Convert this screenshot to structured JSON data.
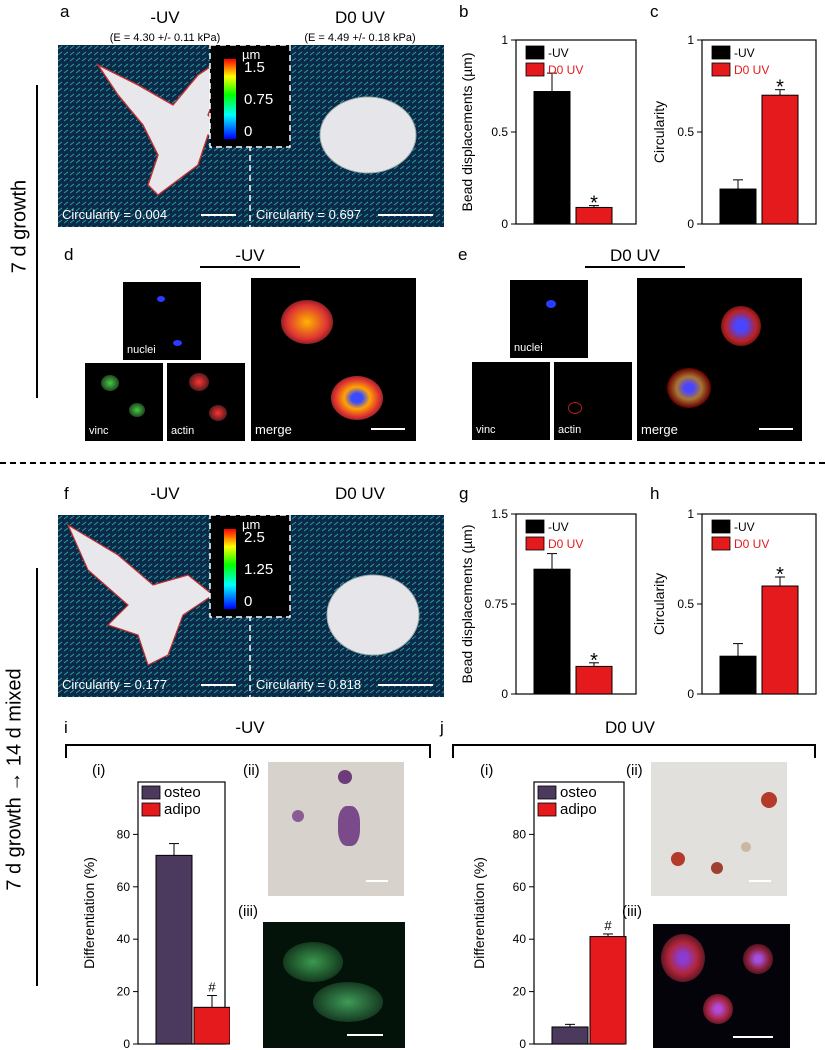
{
  "side_labels": {
    "top": "7 d growth",
    "bottom": "7 d growth → 14 d mixed"
  },
  "panel_letters": [
    "a",
    "b",
    "c",
    "d",
    "e",
    "f",
    "g",
    "h",
    "i",
    "j"
  ],
  "panel_a": {
    "left_title": "-UV",
    "left_modulus": "(E = 4.30 +/- 0.11 kPa)",
    "right_title": "D0 UV",
    "right_modulus": "(E = 4.49 +/- 0.18 kPa)",
    "scale_unit": "µm",
    "scale_ticks": [
      "1.5",
      "0.75",
      "0"
    ],
    "left_circularity": "Circularity = 0.004",
    "right_circularity": "Circularity = 0.697"
  },
  "panel_f": {
    "left_title": "-UV",
    "right_title": "D0 UV",
    "scale_unit": "µm",
    "scale_ticks": [
      "2.5",
      "1.25",
      "0"
    ],
    "left_circularity": "Circularity = 0.177",
    "right_circularity": "Circularity = 0.818"
  },
  "panel_d": {
    "title": "-UV",
    "labels": [
      "nuclei",
      "vinc",
      "actin",
      "merge"
    ]
  },
  "panel_e": {
    "title": "D0 UV",
    "labels": [
      "nuclei",
      "vinc",
      "actin",
      "merge"
    ]
  },
  "panel_i": {
    "title": "-UV",
    "sub": [
      "(i)",
      "(ii)",
      "(iii)"
    ]
  },
  "panel_j": {
    "title": "D0 UV",
    "sub": [
      "(i)",
      "(ii)",
      "(iii)"
    ]
  },
  "chart_data": [
    {
      "id": "b",
      "type": "bar",
      "categories": [
        "-UV",
        "D0 UV"
      ],
      "values": [
        0.72,
        0.09
      ],
      "errors": [
        0.1,
        0.01
      ],
      "ylabel": "Bead displacements (µm)",
      "ylim": [
        0,
        1
      ],
      "yticks": [
        "0",
        "0.5",
        "1"
      ],
      "legend": [
        "-UV",
        "D0 UV"
      ],
      "colors": [
        "#000000",
        "#e41a1c"
      ],
      "annotations": [
        "*"
      ]
    },
    {
      "id": "c",
      "type": "bar",
      "categories": [
        "-UV",
        "D0 UV"
      ],
      "values": [
        0.19,
        0.7
      ],
      "errors": [
        0.05,
        0.03
      ],
      "ylabel": "Circularity",
      "ylim": [
        0,
        1
      ],
      "yticks": [
        "0",
        "0.5",
        "1"
      ],
      "legend": [
        "-UV",
        "D0 UV"
      ],
      "colors": [
        "#000000",
        "#e41a1c"
      ],
      "annotations": [
        "*"
      ]
    },
    {
      "id": "g",
      "type": "bar",
      "categories": [
        "-UV",
        "D0 UV"
      ],
      "values": [
        1.04,
        0.23
      ],
      "errors": [
        0.13,
        0.03
      ],
      "ylabel": "Bead displacements (µm)",
      "ylim": [
        0,
        1.5
      ],
      "yticks": [
        "0",
        "0.75",
        "1.5"
      ],
      "legend": [
        "-UV",
        "D0 UV"
      ],
      "colors": [
        "#000000",
        "#e41a1c"
      ],
      "annotations": [
        "*"
      ]
    },
    {
      "id": "h",
      "type": "bar",
      "categories": [
        "-UV",
        "D0 UV"
      ],
      "values": [
        0.21,
        0.6
      ],
      "errors": [
        0.07,
        0.05
      ],
      "ylabel": "Circularity",
      "ylim": [
        0,
        1
      ],
      "yticks": [
        "0",
        "0.5",
        "1"
      ],
      "legend": [
        "-UV",
        "D0 UV"
      ],
      "colors": [
        "#000000",
        "#e41a1c"
      ],
      "annotations": [
        "*"
      ]
    },
    {
      "id": "i",
      "type": "bar",
      "categories": [
        "osteo",
        "adipo"
      ],
      "values": [
        72,
        14
      ],
      "errors": [
        4.5,
        4.5
      ],
      "ylabel": "Differentiation (%)",
      "ylim": [
        0,
        100
      ],
      "yticks": [
        "0",
        "20",
        "40",
        "60",
        "80"
      ],
      "legend": [
        "osteo",
        "adipo"
      ],
      "colors": [
        "#4b3a5e",
        "#e41a1c"
      ],
      "annotations": [
        "#"
      ]
    },
    {
      "id": "j",
      "type": "bar",
      "categories": [
        "osteo",
        "adipo"
      ],
      "values": [
        6.5,
        41
      ],
      "errors": [
        1,
        1
      ],
      "ylabel": "Differentiation (%)",
      "ylim": [
        0,
        100
      ],
      "yticks": [
        "0",
        "20",
        "40",
        "60",
        "80"
      ],
      "legend": [
        "osteo",
        "adipo"
      ],
      "colors": [
        "#4b3a5e",
        "#e41a1c"
      ],
      "annotations": [
        "#"
      ]
    }
  ]
}
